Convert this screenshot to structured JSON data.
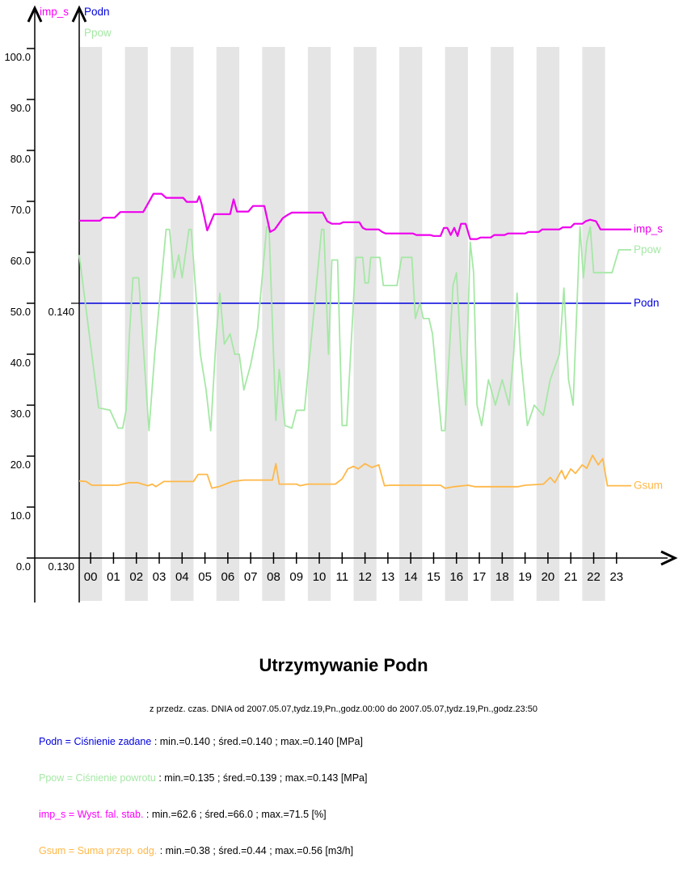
{
  "title": "Utrzymywanie Podn",
  "subtitle": "z przedz. czas. DNIA od 2007.05.07,tydz.19,Pn.,godz.00:00 do 2007.05.07,tydz.19,Pn.,godz.23:50",
  "legend_lines": [
    {
      "series": "Podn",
      "name_text": "Podn = Ciśnienie zadane",
      "stats_text": " : min.=0.140 ; śred.=0.140 ; max.=0.140 [MPa]",
      "color": "#0000dd"
    },
    {
      "series": "Ppow",
      "name_text": "Ppow = Ciśnienie powrotu",
      "stats_text": " : min.=0.135 ; śred.=0.139 ; max.=0.143 [MPa]",
      "color": "#a5e8a5"
    },
    {
      "series": "imp_s",
      "name_text": "imp_s = Wyst. fal. stab.",
      "stats_text": " : min.=62.6 ; śred.=66.0 ; max.=71.5 [%]",
      "color": "#ff00ff"
    },
    {
      "series": "Gsum",
      "name_text": "Gsum = Suma przep. odg.",
      "stats_text": " : min.=0.38 ; śred.=0.44 ; max.=0.56 [m3/h]",
      "color": "#ffb848"
    }
  ],
  "chart_data": {
    "type": "line",
    "x_unit": "hour of day (2007.05.07, 00:00 - 23:50)",
    "band_color": "#e5e5e5",
    "shaded_hours": [
      0,
      2,
      4,
      6,
      8,
      10,
      12,
      14,
      16,
      18,
      20,
      22
    ],
    "x_axis": {
      "tick_labels": [
        "00",
        "01",
        "02",
        "03",
        "04",
        "05",
        "06",
        "07",
        "08",
        "09",
        "10",
        "11",
        "12",
        "13",
        "14",
        "15",
        "16",
        "17",
        "18",
        "19",
        "20",
        "21",
        "22",
        "23"
      ]
    },
    "y_axis_left": {
      "arrow_label": "imp_s",
      "arrow_label_color": "#ff00ff",
      "tick_values": [
        0,
        10,
        20,
        30,
        40,
        50,
        60,
        70,
        80,
        90,
        100
      ],
      "tick_labels": [
        "0.0",
        "10.0",
        "20.0",
        "30.0",
        "40.0",
        "50.0",
        "60.0",
        "70.0",
        "80.0",
        "90.0",
        "100.0"
      ],
      "range": [
        0,
        100
      ]
    },
    "y_axis_right": {
      "arrow_labels": [
        {
          "text": "Podn",
          "color": "#0000dd"
        },
        {
          "text": "Ppow",
          "color": "#a5e8a5"
        }
      ],
      "calibration_labels": [
        {
          "text": "0.130",
          "at_unit": 0
        },
        {
          "text": "0.140",
          "at_unit": 50
        }
      ],
      "mpa_per_unit": 0.0002,
      "mpa_at_zero": 0.13
    },
    "series": [
      {
        "name": "Podn",
        "end_label": "Podn",
        "color": "#0000dd",
        "unit": "MPa",
        "width": 1.6,
        "transform": {
          "offset": -0.13,
          "scale": 5000
        },
        "stats": {
          "min": 0.14,
          "avg": 0.14,
          "max": 0.14
        },
        "points": [
          [
            0,
            0.14
          ],
          [
            23.83,
            0.14
          ]
        ]
      },
      {
        "name": "Ppow",
        "end_label": "Ppow",
        "color": "#a5e8a5",
        "unit": "MPa",
        "width": 1.8,
        "transform": {
          "offset": -0.13,
          "scale": 5000
        },
        "stats": {
          "min": 0.135,
          "avg": 0.139,
          "max": 0.143
        },
        "points": [
          [
            0,
            0.1419
          ],
          [
            0.85,
            0.1359
          ],
          [
            1.35,
            0.1358
          ],
          [
            1.7,
            0.1351
          ],
          [
            1.9,
            0.1351
          ],
          [
            2.05,
            0.1358
          ],
          [
            2.2,
            0.1388
          ],
          [
            2.35,
            0.141
          ],
          [
            2.6,
            0.141
          ],
          [
            3.05,
            0.135
          ],
          [
            3.3,
            0.138
          ],
          [
            3.8,
            0.1429
          ],
          [
            3.95,
            0.1429
          ],
          [
            4.15,
            0.141
          ],
          [
            4.35,
            0.1419
          ],
          [
            4.5,
            0.141
          ],
          [
            4.8,
            0.1429
          ],
          [
            4.9,
            0.1429
          ],
          [
            5.3,
            0.138
          ],
          [
            5.55,
            0.1366
          ],
          [
            5.75,
            0.135
          ],
          [
            6.0,
            0.1388
          ],
          [
            6.15,
            0.1404
          ],
          [
            6.35,
            0.1384
          ],
          [
            6.6,
            0.1388
          ],
          [
            6.8,
            0.138
          ],
          [
            7.0,
            0.138
          ],
          [
            7.2,
            0.1366
          ],
          [
            7.5,
            0.1376
          ],
          [
            7.8,
            0.139
          ],
          [
            8.2,
            0.143
          ],
          [
            8.3,
            0.143
          ],
          [
            8.6,
            0.1354
          ],
          [
            8.75,
            0.1374
          ],
          [
            9.0,
            0.1352
          ],
          [
            9.3,
            0.1351
          ],
          [
            9.5,
            0.1358
          ],
          [
            9.85,
            0.1358
          ],
          [
            10.3,
            0.14
          ],
          [
            10.6,
            0.1429
          ],
          [
            10.7,
            0.1429
          ],
          [
            10.9,
            0.138
          ],
          [
            11.05,
            0.1417
          ],
          [
            11.3,
            0.1417
          ],
          [
            11.5,
            0.1352
          ],
          [
            11.7,
            0.1352
          ],
          [
            12.1,
            0.1418
          ],
          [
            12.4,
            0.1418
          ],
          [
            12.5,
            0.1408
          ],
          [
            12.65,
            0.1408
          ],
          [
            12.75,
            0.1418
          ],
          [
            13.15,
            0.1418
          ],
          [
            13.3,
            0.1407
          ],
          [
            13.9,
            0.1407
          ],
          [
            14.1,
            0.1418
          ],
          [
            14.55,
            0.1418
          ],
          [
            14.7,
            0.1394
          ],
          [
            14.9,
            0.14
          ],
          [
            15.05,
            0.1394
          ],
          [
            15.3,
            0.1394
          ],
          [
            15.45,
            0.1388
          ],
          [
            15.85,
            0.135
          ],
          [
            16.0,
            0.135
          ],
          [
            16.35,
            0.1407
          ],
          [
            16.5,
            0.1412
          ],
          [
            16.7,
            0.138
          ],
          [
            16.9,
            0.136
          ],
          [
            17.1,
            0.1424
          ],
          [
            17.25,
            0.1412
          ],
          [
            17.4,
            0.136
          ],
          [
            17.6,
            0.1352
          ],
          [
            17.9,
            0.137
          ],
          [
            18.2,
            0.136
          ],
          [
            18.5,
            0.137
          ],
          [
            18.8,
            0.136
          ],
          [
            19.0,
            0.138
          ],
          [
            19.15,
            0.1404
          ],
          [
            19.3,
            0.138
          ],
          [
            19.6,
            0.1352
          ],
          [
            19.9,
            0.136
          ],
          [
            20.3,
            0.1356
          ],
          [
            20.6,
            0.137
          ],
          [
            21.0,
            0.138
          ],
          [
            21.2,
            0.1406
          ],
          [
            21.4,
            0.137
          ],
          [
            21.6,
            0.136
          ],
          [
            21.9,
            0.143
          ],
          [
            22.05,
            0.141
          ],
          [
            22.2,
            0.1424
          ],
          [
            22.35,
            0.143
          ],
          [
            22.5,
            0.1412
          ],
          [
            23.3,
            0.1412
          ],
          [
            23.6,
            0.1421
          ],
          [
            23.83,
            0.1421
          ]
        ]
      },
      {
        "name": "imp_s",
        "end_label": "imp_s",
        "color": "#ee00ee",
        "unit": "%",
        "width": 2.2,
        "transform": {
          "offset": 0,
          "scale": 1
        },
        "stats": {
          "min": 62.6,
          "avg": 66.0,
          "max": 71.5
        },
        "points": [
          [
            0,
            66.2
          ],
          [
            0.9,
            66.2
          ],
          [
            1.05,
            66.8
          ],
          [
            1.55,
            66.8
          ],
          [
            1.8,
            67.9
          ],
          [
            2.8,
            67.9
          ],
          [
            3.25,
            71.5
          ],
          [
            3.6,
            71.5
          ],
          [
            3.8,
            70.7
          ],
          [
            4.55,
            70.7
          ],
          [
            4.7,
            69.9
          ],
          [
            5.15,
            69.9
          ],
          [
            5.25,
            71.0
          ],
          [
            5.35,
            69.5
          ],
          [
            5.6,
            64.3
          ],
          [
            5.9,
            67.5
          ],
          [
            6.6,
            67.5
          ],
          [
            6.75,
            70.4
          ],
          [
            6.9,
            68.0
          ],
          [
            7.4,
            68.0
          ],
          [
            7.6,
            69.1
          ],
          [
            8.1,
            69.1
          ],
          [
            8.35,
            64.0
          ],
          [
            8.55,
            64.5
          ],
          [
            8.9,
            66.7
          ],
          [
            9.1,
            67.3
          ],
          [
            9.3,
            67.8
          ],
          [
            10.65,
            67.8
          ],
          [
            10.85,
            66.1
          ],
          [
            11.05,
            65.6
          ],
          [
            11.4,
            65.6
          ],
          [
            11.55,
            65.9
          ],
          [
            12.25,
            65.9
          ],
          [
            12.4,
            64.8
          ],
          [
            12.55,
            64.5
          ],
          [
            13.1,
            64.5
          ],
          [
            13.25,
            64.0
          ],
          [
            13.4,
            63.7
          ],
          [
            14.6,
            63.7
          ],
          [
            14.75,
            63.4
          ],
          [
            15.35,
            63.4
          ],
          [
            15.5,
            63.2
          ],
          [
            15.8,
            63.2
          ],
          [
            15.95,
            64.8
          ],
          [
            16.1,
            64.8
          ],
          [
            16.25,
            63.4
          ],
          [
            16.4,
            64.8
          ],
          [
            16.55,
            63.2
          ],
          [
            16.7,
            65.6
          ],
          [
            16.9,
            65.6
          ],
          [
            17.1,
            62.6
          ],
          [
            17.4,
            62.6
          ],
          [
            17.55,
            62.9
          ],
          [
            18.0,
            62.9
          ],
          [
            18.15,
            63.4
          ],
          [
            18.6,
            63.4
          ],
          [
            18.75,
            63.7
          ],
          [
            19.5,
            63.7
          ],
          [
            19.65,
            64.0
          ],
          [
            20.1,
            64.0
          ],
          [
            20.25,
            64.5
          ],
          [
            21.0,
            64.5
          ],
          [
            21.15,
            64.9
          ],
          [
            21.5,
            64.9
          ],
          [
            21.65,
            65.6
          ],
          [
            22.0,
            65.6
          ],
          [
            22.15,
            66.1
          ],
          [
            22.35,
            66.4
          ],
          [
            22.6,
            66.1
          ],
          [
            22.8,
            64.5
          ],
          [
            23.83,
            64.5
          ]
        ]
      },
      {
        "name": "Gsum",
        "end_label": "Gsum",
        "color": "#ffb848",
        "unit": "m3/h",
        "width": 1.8,
        "transform": {
          "offset": 0,
          "scale": 36
        },
        "stats": {
          "min": 0.38,
          "avg": 0.44,
          "max": 0.56
        },
        "points": [
          [
            0,
            0.42
          ],
          [
            0.3,
            0.417
          ],
          [
            0.55,
            0.397
          ],
          [
            1.7,
            0.397
          ],
          [
            2.2,
            0.411
          ],
          [
            2.55,
            0.411
          ],
          [
            3.0,
            0.394
          ],
          [
            3.2,
            0.403
          ],
          [
            3.35,
            0.389
          ],
          [
            3.7,
            0.417
          ],
          [
            5.0,
            0.417
          ],
          [
            5.2,
            0.456
          ],
          [
            5.6,
            0.456
          ],
          [
            5.8,
            0.381
          ],
          [
            6.1,
            0.389
          ],
          [
            6.7,
            0.417
          ],
          [
            7.2,
            0.425
          ],
          [
            8.45,
            0.425
          ],
          [
            8.6,
            0.514
          ],
          [
            8.75,
            0.403
          ],
          [
            9.5,
            0.403
          ],
          [
            9.65,
            0.394
          ],
          [
            10.0,
            0.403
          ],
          [
            11.2,
            0.403
          ],
          [
            11.5,
            0.431
          ],
          [
            11.75,
            0.486
          ],
          [
            12.0,
            0.5
          ],
          [
            12.2,
            0.486
          ],
          [
            12.5,
            0.514
          ],
          [
            12.8,
            0.494
          ],
          [
            13.1,
            0.508
          ],
          [
            13.35,
            0.394
          ],
          [
            13.6,
            0.397
          ],
          [
            15.8,
            0.397
          ],
          [
            16.0,
            0.38
          ],
          [
            16.4,
            0.389
          ],
          [
            17.0,
            0.397
          ],
          [
            17.3,
            0.389
          ],
          [
            19.2,
            0.389
          ],
          [
            19.5,
            0.397
          ],
          [
            20.3,
            0.403
          ],
          [
            20.6,
            0.439
          ],
          [
            20.8,
            0.411
          ],
          [
            21.1,
            0.478
          ],
          [
            21.25,
            0.431
          ],
          [
            21.5,
            0.486
          ],
          [
            21.7,
            0.461
          ],
          [
            22.0,
            0.508
          ],
          [
            22.2,
            0.489
          ],
          [
            22.45,
            0.56
          ],
          [
            22.7,
            0.508
          ],
          [
            22.9,
            0.542
          ],
          [
            23.1,
            0.394
          ],
          [
            23.83,
            0.394
          ]
        ]
      }
    ]
  }
}
